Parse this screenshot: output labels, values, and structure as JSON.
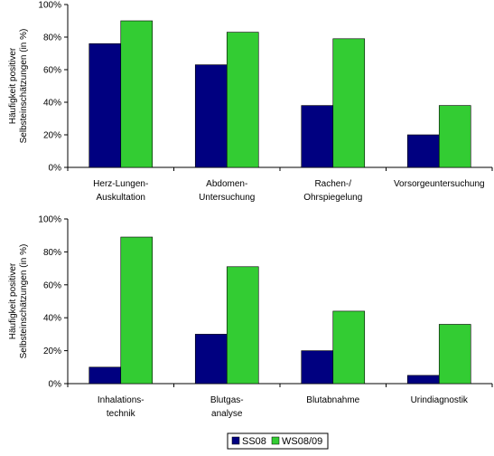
{
  "colors": {
    "SS08": "#000080",
    "WS08/09": "#33cc33",
    "axis": "#000000",
    "frame": "#000000"
  },
  "legend": {
    "placement": "bottom-right",
    "entries": [
      "SS08",
      "WS08/09"
    ]
  },
  "chart_data": [
    {
      "type": "bar",
      "ylabel": [
        "Häufigkeit positiver",
        "Selbsteinschätzungen (in %)"
      ],
      "ylim": [
        0,
        100
      ],
      "yticks": [
        0,
        20,
        40,
        60,
        80,
        100
      ],
      "yticklabels": [
        "0%",
        "20%",
        "40%",
        "60%",
        "80%",
        "100%"
      ],
      "grid": false,
      "categories": [
        [
          "Herz-Lungen-",
          "Auskultation"
        ],
        [
          "Abdomen-",
          "Untersuchung"
        ],
        [
          "Rachen-/",
          "Ohrspiegelung"
        ],
        [
          "Vorsorgeuntersuchung"
        ]
      ],
      "series": [
        {
          "name": "SS08",
          "values": [
            76,
            63,
            38,
            20
          ]
        },
        {
          "name": "WS08/09",
          "values": [
            90,
            83,
            79,
            38
          ]
        }
      ]
    },
    {
      "type": "bar",
      "ylabel": [
        "Häufigkeit positiver",
        "Selbsteinschätzungen (in %)"
      ],
      "ylim": [
        0,
        100
      ],
      "yticks": [
        0,
        20,
        40,
        60,
        80,
        100
      ],
      "yticklabels": [
        "0%",
        "20%",
        "40%",
        "60%",
        "80%",
        "100%"
      ],
      "grid": false,
      "categories": [
        [
          "Inhalations-",
          "technik"
        ],
        [
          "Blutgas-",
          "analyse"
        ],
        [
          "Blutabnahme"
        ],
        [
          "Urindiagnostik"
        ]
      ],
      "series": [
        {
          "name": "SS08",
          "values": [
            10,
            30,
            20,
            5
          ]
        },
        {
          "name": "WS08/09",
          "values": [
            89,
            71,
            44,
            36
          ]
        }
      ]
    }
  ]
}
